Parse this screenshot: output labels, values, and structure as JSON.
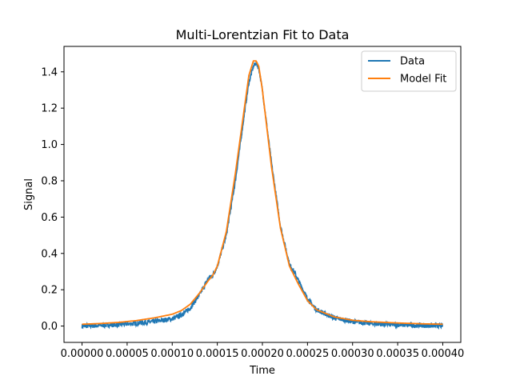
{
  "chart_data": {
    "type": "line",
    "title": "Multi-Lorentzian Fit to Data",
    "xlabel": "Time",
    "ylabel": "Signal",
    "xlim": [
      -2e-05,
      0.00042
    ],
    "ylim": [
      -0.09,
      1.54
    ],
    "x_ticks": [
      0.0,
      5e-05,
      0.0001,
      0.00015,
      0.0002,
      0.00025,
      0.0003,
      0.00035,
      0.0004
    ],
    "x_tick_labels": [
      "0.00000",
      "0.00005",
      "0.00010",
      "0.00015",
      "0.00020",
      "0.00025",
      "0.00030",
      "0.00035",
      "0.00040"
    ],
    "y_ticks": [
      0.0,
      0.2,
      0.4,
      0.6,
      0.8,
      1.0,
      1.2,
      1.4
    ],
    "y_tick_labels": [
      "0.0",
      "0.2",
      "0.4",
      "0.6",
      "0.8",
      "1.0",
      "1.2",
      "1.4"
    ],
    "grid": false,
    "legend": "upper-right",
    "series": [
      {
        "name": "Data",
        "color": "#1f77b4",
        "noisy": true,
        "x": [
          0.0,
          2e-05,
          4e-05,
          6e-05,
          8e-05,
          0.0001,
          0.00011,
          0.00012,
          0.00013,
          0.00014,
          0.000145,
          0.00015,
          0.00016,
          0.00017,
          0.00018,
          0.000185,
          0.00019,
          0.000193,
          0.000196,
          0.0002,
          0.00021,
          0.00022,
          0.00023,
          0.000235,
          0.00024,
          0.00025,
          0.00026,
          0.00028,
          0.0003,
          0.00032,
          0.00035,
          0.00038,
          0.0004
        ],
        "y": [
          0.0,
          0.003,
          0.008,
          0.015,
          0.025,
          0.04,
          0.06,
          0.1,
          0.17,
          0.26,
          0.28,
          0.33,
          0.5,
          0.8,
          1.17,
          1.34,
          1.43,
          1.45,
          1.42,
          1.3,
          0.9,
          0.55,
          0.34,
          0.3,
          0.25,
          0.15,
          0.09,
          0.045,
          0.025,
          0.014,
          0.007,
          0.003,
          0.002
        ]
      },
      {
        "name": "Model Fit",
        "color": "#ff7f0e",
        "noisy": false,
        "x": [
          0.0,
          2e-05,
          4e-05,
          6e-05,
          8e-05,
          0.0001,
          0.00011,
          0.00012,
          0.00013,
          0.00014,
          0.000145,
          0.00015,
          0.00016,
          0.00017,
          0.00018,
          0.000185,
          0.00019,
          0.000193,
          0.000196,
          0.0002,
          0.00021,
          0.00022,
          0.00023,
          0.000235,
          0.00024,
          0.00025,
          0.00026,
          0.00028,
          0.0003,
          0.00032,
          0.00035,
          0.00038,
          0.0004
        ],
        "y": [
          0.01,
          0.014,
          0.02,
          0.03,
          0.045,
          0.065,
          0.085,
          0.12,
          0.18,
          0.25,
          0.28,
          0.33,
          0.52,
          0.84,
          1.2,
          1.38,
          1.46,
          1.46,
          1.43,
          1.3,
          0.88,
          0.54,
          0.33,
          0.28,
          0.23,
          0.14,
          0.09,
          0.05,
          0.032,
          0.024,
          0.017,
          0.012,
          0.01
        ]
      }
    ]
  }
}
